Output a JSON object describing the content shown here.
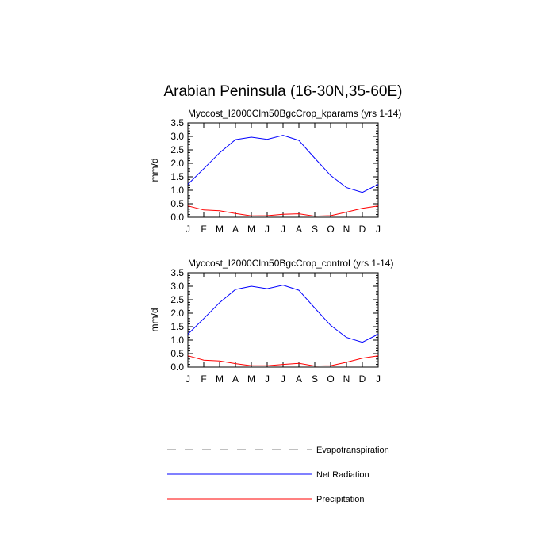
{
  "title": "Arabian Peninsula (16-30N,35-60E)",
  "colors": {
    "evap": "#808080",
    "netrad": "#0000ff",
    "precip": "#ff0000",
    "axis": "#000000"
  },
  "legend": [
    {
      "label": "Evapotranspiration",
      "color": "#808080",
      "dash": true
    },
    {
      "label": "Net Radiation",
      "color": "#0000ff",
      "dash": false
    },
    {
      "label": "Precipitation",
      "color": "#ff0000",
      "dash": false
    }
  ],
  "chart_data": [
    {
      "type": "line",
      "title": "Myccost_I2000Clm50BgcCrop_kparams (yrs 1-14)",
      "ylabel": "mm/d",
      "ylim": [
        0,
        3.5
      ],
      "yticks": [
        "0.0",
        "0.5",
        "1.0",
        "1.5",
        "2.0",
        "2.5",
        "3.0",
        "3.5"
      ],
      "categories": [
        "J",
        "F",
        "M",
        "A",
        "M",
        "J",
        "J",
        "A",
        "S",
        "O",
        "N",
        "D",
        "J"
      ],
      "series": [
        {
          "name": "Net Radiation",
          "color": "#0000ff",
          "values": [
            1.22,
            1.8,
            2.39,
            2.88,
            2.97,
            2.89,
            3.04,
            2.85,
            2.19,
            1.55,
            1.1,
            0.92,
            1.22
          ]
        },
        {
          "name": "Precipitation",
          "color": "#ff0000",
          "values": [
            0.42,
            0.27,
            0.24,
            0.14,
            0.05,
            0.06,
            0.11,
            0.13,
            0.04,
            0.06,
            0.19,
            0.33,
            0.42
          ]
        }
      ]
    },
    {
      "type": "line",
      "title": "Myccost_I2000Clm50BgcCrop_control (yrs 1-14)",
      "ylabel": "mm/d",
      "ylim": [
        0,
        3.5
      ],
      "yticks": [
        "0.0",
        "0.5",
        "1.0",
        "1.5",
        "2.0",
        "2.5",
        "3.0",
        "3.5"
      ],
      "categories": [
        "J",
        "F",
        "M",
        "A",
        "M",
        "J",
        "J",
        "A",
        "S",
        "O",
        "N",
        "D",
        "J"
      ],
      "series": [
        {
          "name": "Net Radiation",
          "color": "#0000ff",
          "values": [
            1.22,
            1.8,
            2.39,
            2.88,
            3.0,
            2.91,
            3.04,
            2.85,
            2.19,
            1.55,
            1.1,
            0.92,
            1.22
          ]
        },
        {
          "name": "Precipitation",
          "color": "#ff0000",
          "values": [
            0.42,
            0.26,
            0.23,
            0.13,
            0.05,
            0.05,
            0.1,
            0.14,
            0.04,
            0.05,
            0.18,
            0.33,
            0.42
          ]
        }
      ]
    }
  ]
}
